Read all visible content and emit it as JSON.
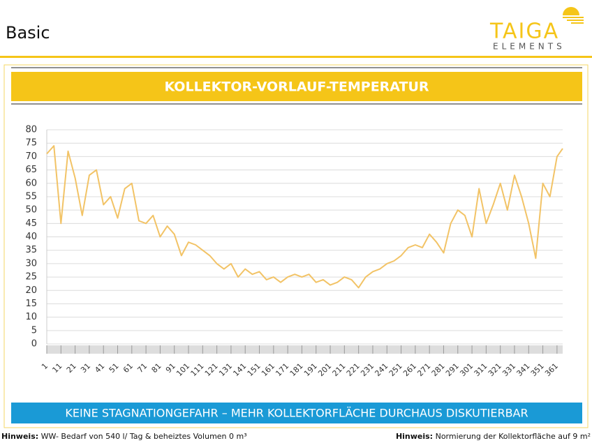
{
  "header": {
    "title": "Basic",
    "logo_top": "TAIGA",
    "logo_bottom": "ELEMENTS"
  },
  "banner": "KOLLEKTOR-VORLAUF-TEMPERATUR",
  "chart_data": {
    "type": "line",
    "color": "#f2c366",
    "x": [
      1,
      6,
      11,
      16,
      21,
      26,
      31,
      36,
      41,
      46,
      51,
      56,
      61,
      66,
      71,
      76,
      81,
      86,
      91,
      96,
      101,
      106,
      111,
      116,
      121,
      126,
      131,
      136,
      141,
      146,
      151,
      156,
      161,
      166,
      171,
      176,
      181,
      186,
      191,
      196,
      201,
      206,
      211,
      216,
      221,
      226,
      231,
      236,
      241,
      246,
      251,
      256,
      261,
      266,
      271,
      276,
      281,
      286,
      291,
      296,
      301,
      306,
      311,
      316,
      321,
      326,
      331,
      336,
      341,
      346,
      351,
      356,
      361,
      365
    ],
    "values": [
      71,
      74,
      45,
      72,
      62,
      48,
      63,
      65,
      52,
      55,
      47,
      58,
      60,
      46,
      45,
      48,
      40,
      44,
      41,
      33,
      38,
      37,
      35,
      33,
      30,
      28,
      30,
      25,
      28,
      26,
      27,
      24,
      25,
      23,
      25,
      26,
      25,
      26,
      23,
      24,
      22,
      23,
      25,
      24,
      21,
      25,
      27,
      28,
      30,
      31,
      33,
      36,
      37,
      36,
      41,
      38,
      34,
      45,
      50,
      48,
      40,
      58,
      45,
      52,
      60,
      50,
      63,
      55,
      45,
      32,
      60,
      55,
      70,
      73
    ],
    "xlim": [
      1,
      365
    ],
    "xticks": [
      1,
      11,
      21,
      31,
      41,
      51,
      61,
      71,
      81,
      91,
      101,
      111,
      121,
      131,
      141,
      151,
      161,
      171,
      181,
      191,
      201,
      211,
      221,
      231,
      241,
      251,
      261,
      271,
      281,
      291,
      301,
      311,
      321,
      331,
      341,
      351,
      361
    ],
    "ylim": [
      0,
      80
    ],
    "yticks": [
      0,
      5,
      10,
      15,
      20,
      25,
      30,
      35,
      40,
      45,
      50,
      55,
      60,
      65,
      70,
      75,
      80
    ],
    "grid": true
  },
  "footer_banner": "KEINE STAGNATIONGEFAHR – MEHR KOLLEKTORFLÄCHE DURCHAUS DISKUTIERBAR",
  "notes": [
    {
      "label": "Hinweis:",
      "text": "WW- Bedarf von 540 l/ Tag & beheiztes Volumen 0 m³"
    },
    {
      "label": "Hinweis:",
      "text": "Normierung der Kollektorfläche auf 9 m²"
    }
  ]
}
